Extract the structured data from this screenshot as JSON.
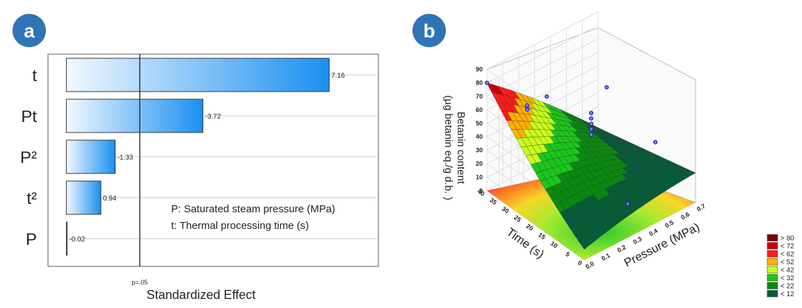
{
  "panels": {
    "a": {
      "badge": "a",
      "note_lines": [
        "P: Saturated steam pressure (MPa)",
        "t: Thermal processing time (s)"
      ]
    },
    "b": {
      "badge": "b",
      "legend": {
        "entries": [
          "> 80",
          "< 72",
          "< 62",
          "< 52",
          "< 42",
          "< 32",
          "< 22",
          "< 12"
        ],
        "colors": [
          "#7a0000",
          "#c8000a",
          "#ff1a1a",
          "#ffb000",
          "#c8ff1a",
          "#19c81a",
          "#0a8a10",
          "#055c38"
        ]
      }
    }
  },
  "chart_data": [
    {
      "type": "bar",
      "orientation": "horizontal",
      "categories": [
        "t",
        "Pt",
        "P²",
        "t²",
        "P"
      ],
      "values": [
        7.16,
        3.72,
        1.33,
        0.94,
        0.02
      ],
      "value_labels": [
        "7.16",
        "-3.72",
        "-1.33",
        "0.94",
        "-0.02"
      ],
      "xlabel": "Standardized Effect",
      "reference_line": {
        "value": 2.0,
        "label": "p=.05"
      },
      "xlim": [
        -0.5,
        8.5
      ],
      "grid": true,
      "bar_color": "#1a8ff0"
    },
    {
      "type": "surface",
      "xlabel": "Pressure (MPa)",
      "ylabel": "Time (s)",
      "zlabel_lines": [
        "Betanin content",
        "(µg betanin eq./g d.b. )"
      ],
      "x_ticks": [
        "0.0",
        "0.1",
        "0.2",
        "0.3",
        "0.4",
        "0.5",
        "0.6",
        "0.7"
      ],
      "y_ticks": [
        "0",
        "5",
        "10",
        "15",
        "20",
        "25",
        "30",
        "35",
        "40"
      ],
      "z_ticks": [
        "0",
        "10",
        "20",
        "30",
        "40",
        "50",
        "60",
        "70",
        "80",
        "90"
      ],
      "xlim": [
        0,
        0.7
      ],
      "ylim": [
        0,
        40
      ],
      "zlim": [
        0,
        90
      ],
      "observed_points": [
        {
          "x": 0.0,
          "y": 40,
          "z": 80
        },
        {
          "x": 0.1,
          "y": 30,
          "z": 70
        },
        {
          "x": 0.1,
          "y": 30,
          "z": 67
        },
        {
          "x": 0.35,
          "y": 20,
          "z": 62
        },
        {
          "x": 0.35,
          "y": 20,
          "z": 58
        },
        {
          "x": 0.35,
          "y": 20,
          "z": 54
        },
        {
          "x": 0.35,
          "y": 20,
          "z": 50
        },
        {
          "x": 0.35,
          "y": 20,
          "z": 46
        },
        {
          "x": 0.3,
          "y": 35,
          "z": 58
        },
        {
          "x": 0.6,
          "y": 30,
          "z": 53
        },
        {
          "x": 0.6,
          "y": 10,
          "z": 38
        },
        {
          "x": 0.35,
          "y": 5,
          "z": 14
        }
      ]
    }
  ]
}
